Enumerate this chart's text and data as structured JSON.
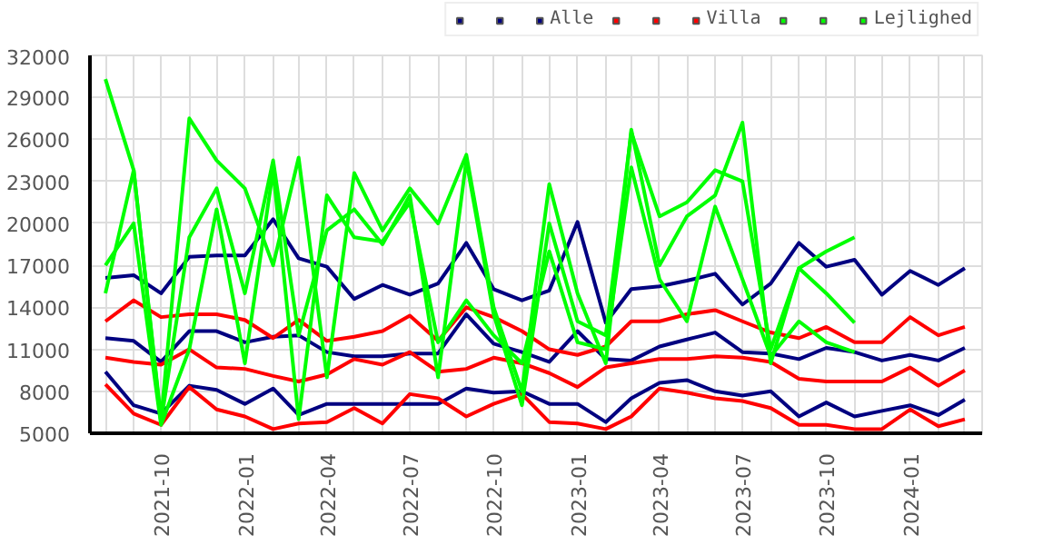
{
  "chart_data": {
    "type": "line",
    "x": [
      "2021-08",
      "2021-09",
      "2021-10",
      "2021-11",
      "2021-12",
      "2022-01",
      "2022-02",
      "2022-03",
      "2022-04",
      "2022-05",
      "2022-06",
      "2022-07",
      "2022-08",
      "2022-09",
      "2022-10",
      "2022-11",
      "2022-12",
      "2023-01",
      "2023-02",
      "2023-03",
      "2023-04",
      "2023-05",
      "2023-06",
      "2023-07",
      "2023-08",
      "2023-09",
      "2023-10",
      "2023-11",
      "2023-12",
      "2024-01",
      "2024-02",
      "2024-03"
    ],
    "series": [
      {
        "color": "#000080",
        "values": [
          16100,
          16300,
          15000,
          17600,
          17700,
          17700,
          20300,
          17500,
          16900,
          14600,
          15600,
          14900,
          15700,
          18600,
          15300,
          14500,
          15200,
          20100,
          12900,
          15300,
          15500,
          15900,
          16400,
          14200,
          15700,
          18600,
          16900,
          17400,
          14900,
          16600,
          15600,
          16800
        ]
      },
      {
        "color": "#000080",
        "values": [
          11800,
          11600,
          10100,
          12300,
          12300,
          11500,
          11900,
          12000,
          10800,
          10500,
          10500,
          10700,
          10700,
          13500,
          11400,
          10800,
          10100,
          12300,
          10300,
          10200,
          11200,
          11700,
          12200,
          10800,
          10700,
          10300,
          11100,
          10800,
          10200,
          10600,
          10200,
          11100
        ]
      },
      {
        "name": "Alle",
        "color": "#000080",
        "values": [
          9400,
          7000,
          6400,
          8400,
          8100,
          7100,
          8200,
          6300,
          7100,
          7100,
          7100,
          7100,
          7100,
          8200,
          7900,
          8000,
          7100,
          7100,
          5800,
          7500,
          8600,
          8800,
          8000,
          7700,
          8000,
          6200,
          7200,
          6200,
          6600,
          7000,
          6300,
          7400
        ]
      },
      {
        "color": "#ff0000",
        "values": [
          13000,
          14500,
          13300,
          13500,
          13500,
          13100,
          11800,
          13100,
          11600,
          11900,
          12300,
          13400,
          11600,
          14000,
          13300,
          12300,
          11000,
          10600,
          11200,
          13000,
          13000,
          13500,
          13800,
          13000,
          12200,
          11800,
          12600,
          11500,
          11500,
          13300,
          12000,
          12600
        ]
      },
      {
        "color": "#ff0000",
        "values": [
          10400,
          10100,
          9900,
          11000,
          9700,
          9600,
          9100,
          8700,
          9200,
          10300,
          9900,
          10800,
          9400,
          9600,
          10400,
          10000,
          9300,
          8300,
          9700,
          10000,
          10300,
          10300,
          10500,
          10400,
          10100,
          8900,
          8700,
          8700,
          8700,
          9700,
          8400,
          9500
        ]
      },
      {
        "name": "Villa",
        "color": "#ff0000",
        "values": [
          8500,
          6400,
          5600,
          8300,
          6700,
          6200,
          5300,
          5700,
          5800,
          6800,
          5700,
          7800,
          7500,
          6200,
          7100,
          7800,
          5800,
          5700,
          5300,
          6200,
          8200,
          7900,
          7500,
          7300,
          6800,
          5600,
          5600,
          5300,
          5300,
          6700,
          5500,
          6000
        ]
      },
      {
        "color": "#00ff00",
        "values": [
          30300,
          23800,
          6000,
          27500,
          24500,
          22500,
          17000,
          24700,
          9000,
          23600,
          19500,
          22500,
          20000,
          24900,
          14000,
          8000,
          22800,
          15000,
          10000,
          26700,
          17000,
          20500,
          22000,
          27200,
          10000,
          16800,
          18000,
          19000,
          null,
          null,
          null,
          null
        ]
      },
      {
        "color": "#00ff00",
        "values": [
          15000,
          23800,
          5800,
          19000,
          22500,
          15000,
          24500,
          12000,
          19500,
          21000,
          18500,
          22000,
          9000,
          24500,
          13500,
          7000,
          20000,
          13000,
          12000,
          26500,
          20500,
          21500,
          23800,
          23000,
          11000,
          16800,
          15000,
          12900,
          null,
          null,
          null,
          null
        ]
      },
      {
        "name": "Lejlighed",
        "color": "#00ff00",
        "values": [
          17000,
          20000,
          5600,
          11000,
          21000,
          10000,
          23800,
          6000,
          22000,
          19000,
          18700,
          21500,
          11500,
          14500,
          12000,
          10000,
          18000,
          11500,
          11000,
          24000,
          16000,
          13000,
          21200,
          16000,
          10500,
          13000,
          11500,
          10800,
          null,
          null,
          null,
          null
        ]
      }
    ],
    "xlim": [
      "2021-07-15",
      "2024-03-20"
    ],
    "xticks": [
      {
        "value": "2021-08",
        "label": null
      },
      {
        "value": "2021-09",
        "label": null
      },
      "2021-10",
      {
        "value": "2021-11",
        "label": null
      },
      {
        "value": "2021-12",
        "label": null
      },
      "2022-01",
      {
        "value": "2022-02",
        "label": null
      },
      {
        "value": "2022-03",
        "label": null
      },
      "2022-04",
      {
        "value": "2022-05",
        "label": null
      },
      {
        "value": "2022-06",
        "label": null
      },
      "2022-07",
      {
        "value": "2022-08",
        "label": null
      },
      {
        "value": "2022-09",
        "label": null
      },
      "2022-10",
      {
        "value": "2022-11",
        "label": null
      },
      {
        "value": "2022-12",
        "label": null
      },
      "2023-01",
      {
        "value": "2023-02",
        "label": null
      },
      {
        "value": "2023-03",
        "label": null
      },
      "2023-04",
      {
        "value": "2023-05",
        "label": null
      },
      {
        "value": "2023-06",
        "label": null
      },
      "2023-07",
      {
        "value": "2023-08",
        "label": null
      },
      {
        "value": "2023-09",
        "label": null
      },
      "2023-10",
      {
        "value": "2023-11",
        "label": null
      },
      {
        "value": "2023-12",
        "label": null
      },
      "2024-01",
      {
        "value": "2024-02",
        "label": null
      },
      {
        "value": "2024-03",
        "label": null
      }
    ],
    "ylim": [
      5000,
      32000
    ],
    "yticks": [
      5000,
      8000,
      11000,
      14000,
      17000,
      20000,
      23000,
      26000,
      29000,
      32000
    ],
    "grid": true,
    "legend": "top right",
    "marker": "none",
    "line_style": "solid"
  }
}
